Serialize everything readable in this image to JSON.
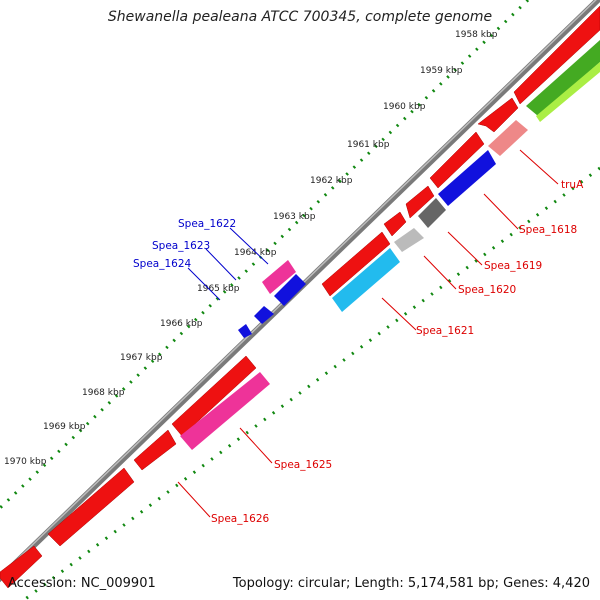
{
  "title": "Shewanella pealeana ATCC 700345, complete genome",
  "accession": "Accession: NC_009901",
  "summary": "Topology: circular; Length: 5,174,581 bp; Genes: 4,420",
  "colors": {
    "backbone": "#8c8c8c",
    "ruler_dots": "#118811",
    "red_gene": "#ee1111",
    "pink_gene": "#ee3399",
    "blue_gene": "#1111dd",
    "cyan_gene": "#22bbee",
    "gray_gene": "#777777",
    "light_gray_gene": "#bbbbbb",
    "salmon_gene": "#ee8888",
    "green_gene": "#44aa22",
    "yellowgreen_gene": "#aaee44",
    "red_label": "#dd0000",
    "blue_label": "#0000cc"
  },
  "scale_labels": [
    "1958 kbp",
    "1959 kbp",
    "1960 kbp",
    "1961 kbp",
    "1962 kbp",
    "1963 kbp",
    "1964 kbp",
    "1965 kbp",
    "1966 kbp",
    "1967 kbp",
    "1968 kbp",
    "1969 kbp",
    "1970 kbp"
  ],
  "gene_labels": {
    "truA": "truA",
    "spea_1618": "Spea_1618",
    "spea_1619": "Spea_1619",
    "spea_1620": "Spea_1620",
    "spea_1621": "Spea_1621",
    "spea_1622": "Spea_1622",
    "spea_1623": "Spea_1623",
    "spea_1624": "Spea_1624",
    "spea_1625": "Spea_1625",
    "spea_1626": "Spea_1626"
  }
}
